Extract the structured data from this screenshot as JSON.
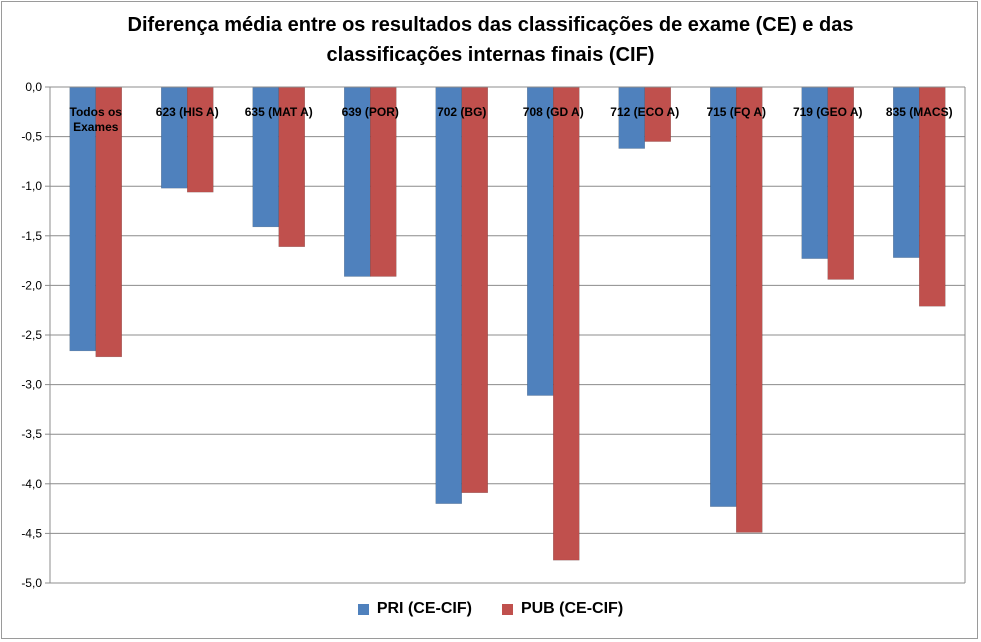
{
  "chart_data": {
    "type": "bar",
    "title_lines": [
      "Diferença média entre os resultados das classificações de exame (CE) e das",
      "classificações internas finais (CIF)"
    ],
    "categories": [
      [
        "Todos os",
        "Exames"
      ],
      [
        "623 (HIS A)"
      ],
      [
        "635 (MAT A)"
      ],
      [
        "639 (POR)"
      ],
      [
        "702 (BG)"
      ],
      [
        "708 (GD A)"
      ],
      [
        "712 (ECO A)"
      ],
      [
        "715 (FQ A)"
      ],
      [
        "719 (GEO A)"
      ],
      [
        "835 (MACS)"
      ]
    ],
    "series": [
      {
        "name": "PRI (CE-CIF)",
        "color": "#4f81bd",
        "values": [
          -2.66,
          -1.02,
          -1.41,
          -1.91,
          -4.2,
          -3.11,
          -0.62,
          -4.23,
          -1.73,
          -1.72
        ]
      },
      {
        "name": "PUB (CE-CIF)",
        "color": "#c0504d",
        "values": [
          -2.72,
          -1.06,
          -1.61,
          -1.91,
          -4.09,
          -4.77,
          -0.55,
          -4.49,
          -1.94,
          -2.21
        ]
      }
    ],
    "ylim": [
      -5.0,
      0.0
    ],
    "yticks": [
      "0,0",
      "-0,5",
      "-1,0",
      "-1,5",
      "-2,0",
      "-2,5",
      "-3,0",
      "-3,5",
      "-4,0",
      "-4,5",
      "-5,0"
    ],
    "ytick_values": [
      0,
      -0.5,
      -1,
      -1.5,
      -2,
      -2.5,
      -3,
      -3.5,
      -4,
      -4.5,
      -5
    ],
    "grid": true,
    "legend_position": "bottom"
  }
}
